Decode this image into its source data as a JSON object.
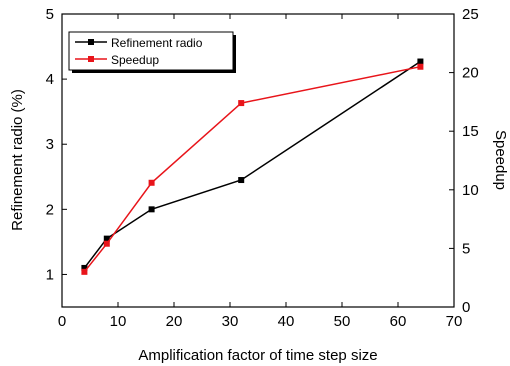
{
  "chart_data": {
    "type": "line",
    "xlabel": "Amplification factor of time step size",
    "ylabel_left": "Refinement radio (%)",
    "ylabel_right": "Speedup",
    "xlim": [
      0,
      70
    ],
    "xticks": [
      0,
      10,
      20,
      30,
      40,
      50,
      60,
      70
    ],
    "ylim_left": [
      0.5,
      5
    ],
    "yticks_left": [
      1,
      2,
      3,
      4,
      5
    ],
    "ylim_right": [
      0,
      25
    ],
    "yticks_right": [
      0,
      5,
      10,
      15,
      20,
      25
    ],
    "grid": false,
    "legend_position": "top-left",
    "series": [
      {
        "name": "Refinement radio",
        "axis": "left",
        "color": "#000000",
        "marker": "square",
        "x": [
          4,
          8,
          16,
          32,
          64
        ],
        "y": [
          1.1,
          1.55,
          2.0,
          2.45,
          4.27
        ]
      },
      {
        "name": "Speedup",
        "axis": "right",
        "color": "#e8141a",
        "marker": "square",
        "x": [
          4,
          8,
          16,
          32,
          64
        ],
        "y": [
          3.0,
          5.4,
          10.6,
          17.4,
          20.5
        ]
      }
    ]
  }
}
